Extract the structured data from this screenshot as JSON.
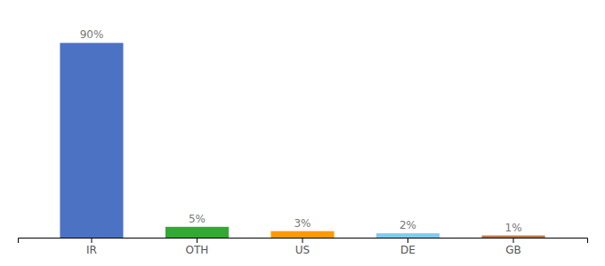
{
  "chart_data": {
    "type": "bar",
    "categories": [
      "IR",
      "OTH",
      "US",
      "DE",
      "GB"
    ],
    "values": [
      90,
      5,
      3,
      2,
      1
    ],
    "value_labels": [
      "90%",
      "5%",
      "3%",
      "2%",
      "1%"
    ],
    "colors": [
      "#4C72C4",
      "#33A832",
      "#FF9900",
      "#80CCEE",
      "#C07848"
    ],
    "ylim": [
      0,
      100
    ],
    "data_labels": true,
    "tick_labels": "x"
  }
}
